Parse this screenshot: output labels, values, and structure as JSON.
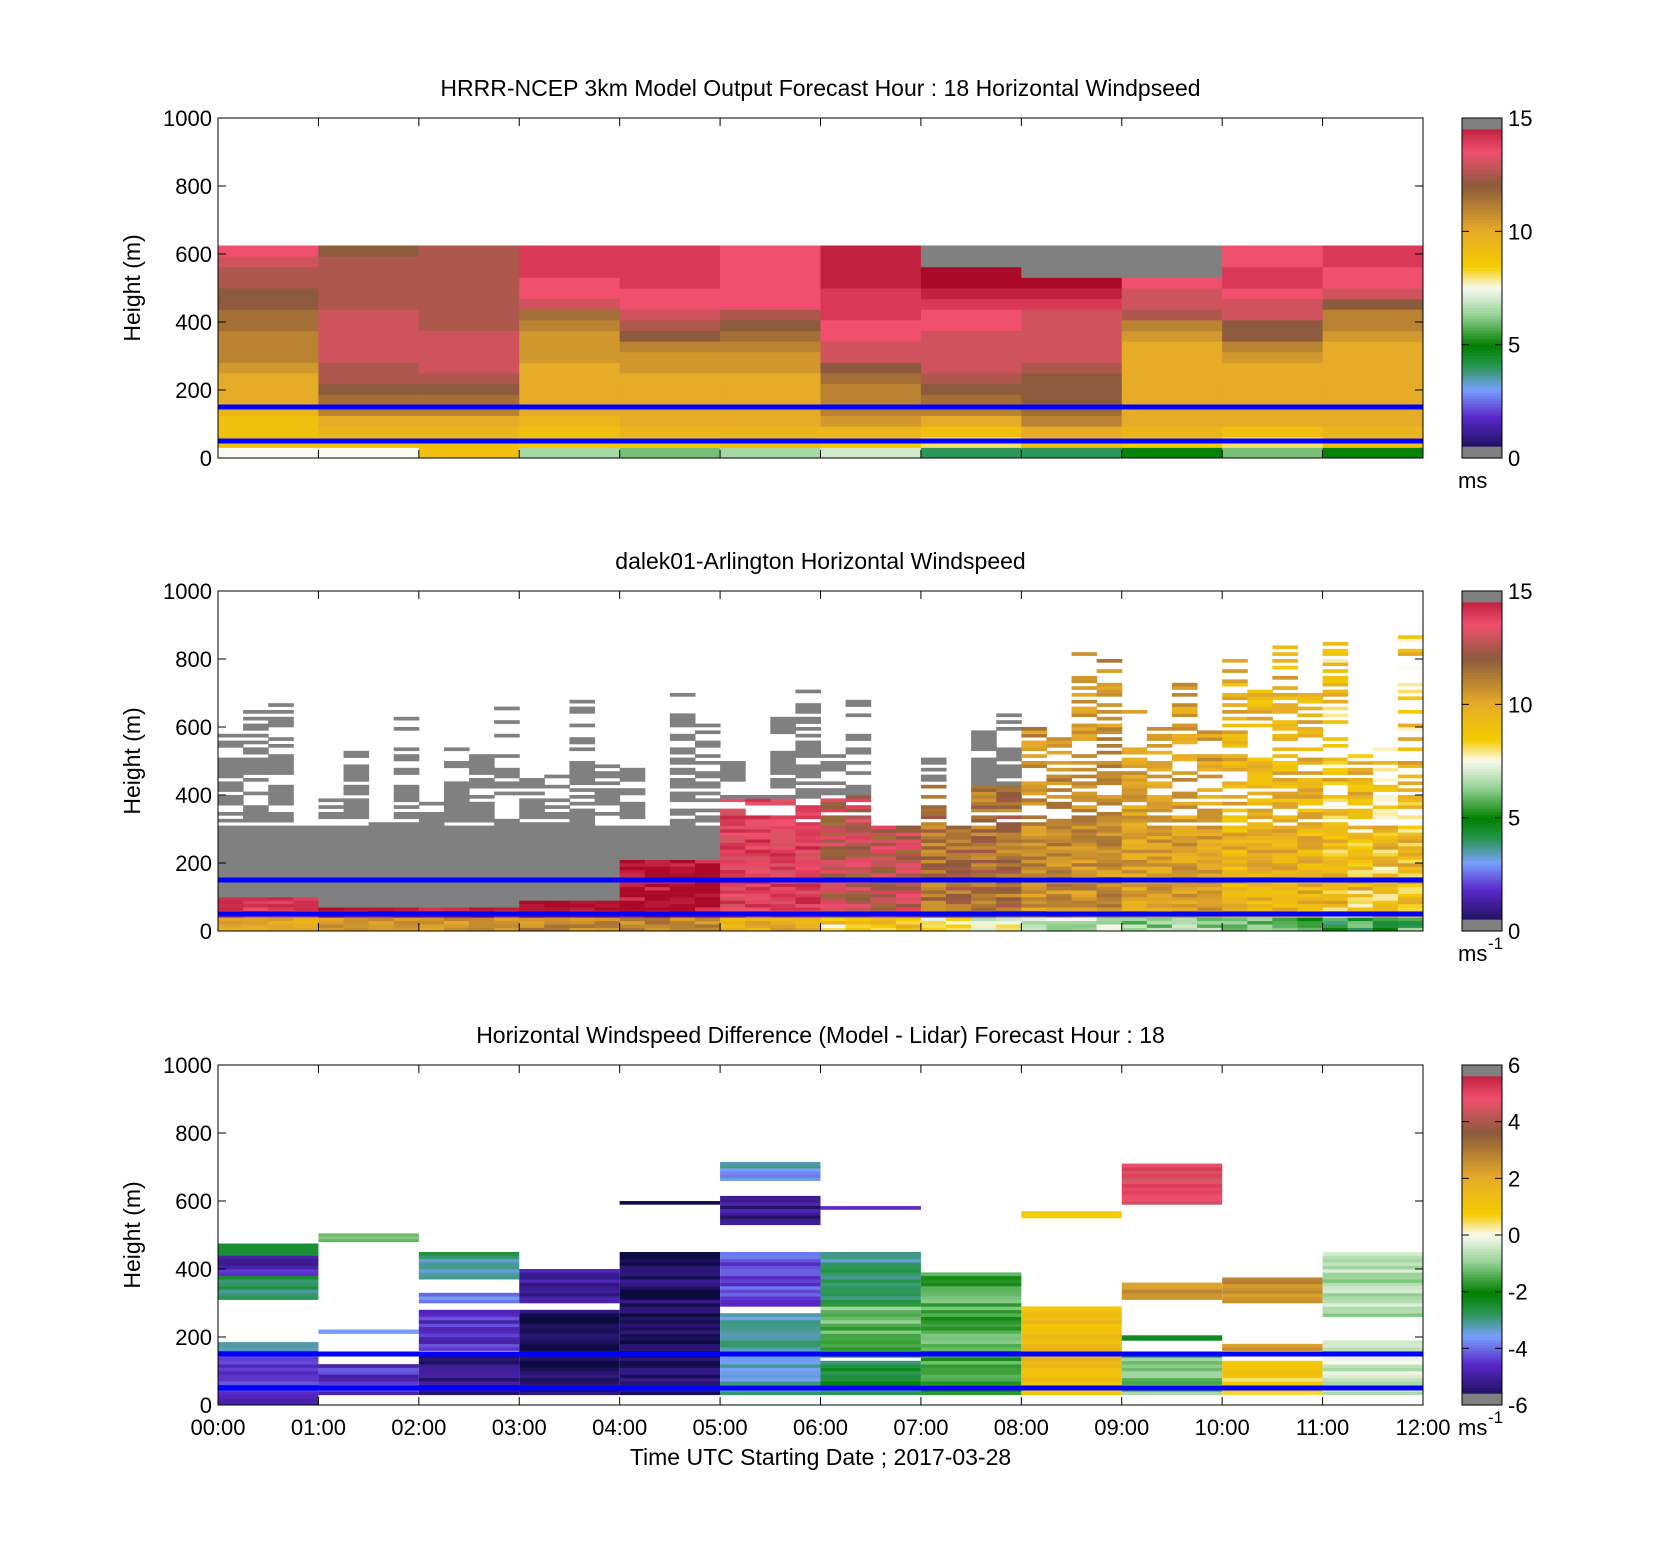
{
  "chart_data": [
    {
      "type": "heatmap",
      "title": "HRRR-NCEP 3km Model Output   Forecast Hour : 18 Horizontal Windpseed",
      "ylabel": "Height (m)",
      "xlabel": "",
      "ylim": [
        0,
        1000
      ],
      "xlim": [
        0,
        12
      ],
      "yticks": [
        "0",
        "200",
        "400",
        "600",
        "800",
        "1000"
      ],
      "xtick_positions": [
        0,
        1,
        2,
        3,
        4,
        5,
        6,
        7,
        8,
        9,
        10,
        11,
        12
      ],
      "horizontal_lines": [
        50,
        150
      ],
      "colorbar": {
        "ticks": [
          "0",
          "5",
          "10",
          "15"
        ],
        "tick_values": [
          0,
          5,
          10,
          15
        ],
        "range": [
          0,
          15
        ],
        "unit": "ms",
        "unit_sup": ""
      },
      "cell_height": 31.25,
      "bottom": 0,
      "grid": [
        [
          7.5,
          9,
          9,
          9,
          9.5,
          10,
          10,
          10,
          10.5,
          11,
          11,
          11,
          11.5,
          11.5,
          12,
          12,
          12.5,
          12.5,
          13,
          13.5
        ],
        [
          7.5,
          9,
          9.5,
          10,
          11,
          11.5,
          12,
          12.5,
          12.5,
          13,
          13,
          13,
          13,
          13,
          12.5,
          12.5,
          12.5,
          12.5,
          12.5,
          12
        ],
        [
          9,
          9,
          9.5,
          10,
          11,
          11.5,
          12,
          12.5,
          13,
          13,
          13,
          13,
          12.5,
          12.5,
          12.5,
          12.5,
          12.5,
          12.5,
          12.5,
          12.5
        ],
        [
          6.5,
          8.5,
          9,
          9.5,
          10,
          10,
          10,
          10,
          10,
          10.5,
          10.5,
          10.5,
          11,
          11.5,
          13,
          13.5,
          13.5,
          14,
          14,
          14
        ],
        [
          6,
          8.5,
          9.5,
          10,
          10,
          10,
          10,
          10,
          10.5,
          10.5,
          11,
          12,
          12.5,
          13,
          13.5,
          13.5,
          14,
          14,
          14,
          14
        ],
        [
          6.5,
          9,
          9.5,
          10,
          10,
          10,
          10,
          10,
          10.5,
          10.5,
          11,
          11.5,
          12,
          12.5,
          13.5,
          13.5,
          13.5,
          13.5,
          13.5,
          13.5
        ],
        [
          7,
          8.5,
          9.5,
          10.5,
          11,
          11,
          11,
          11.5,
          12,
          13,
          13,
          13.5,
          13.5,
          14,
          14,
          14,
          14.5,
          14.5,
          14.5,
          14.5
        ],
        [
          4,
          8,
          9,
          10,
          11,
          11.5,
          12,
          12.5,
          13,
          13,
          13,
          13,
          13.5,
          13.5,
          14,
          14.5,
          15,
          15,
          15.5,
          15.5
        ],
        [
          4,
          9,
          10,
          11,
          11.5,
          12,
          12,
          12,
          12.5,
          13,
          13,
          13,
          13,
          13,
          14,
          14.5,
          15,
          15.5,
          15.5,
          15.5
        ],
        [
          5,
          8.5,
          9.5,
          10,
          10,
          10,
          10,
          10,
          10,
          10,
          10,
          10.5,
          11,
          12.5,
          13,
          13,
          13.5,
          15.5,
          15.5,
          15.5
        ],
        [
          6,
          8,
          9,
          10,
          10,
          10,
          10,
          10,
          10,
          10.5,
          11,
          12,
          12,
          13,
          13,
          13.5,
          14,
          14,
          13.5,
          13.5
        ],
        [
          5,
          9,
          9.5,
          10,
          10,
          10,
          10,
          10,
          10,
          10,
          10,
          10.5,
          11,
          11,
          12,
          13,
          13.5,
          13.5,
          14,
          14
        ]
      ],
      "spot_value_above_14": "gray",
      "gray_cells_note": ""
    },
    {
      "type": "heatmap",
      "title": "dalek01-Arlington  Horizontal Windspeed",
      "ylabel": "Height (m)",
      "xlabel": "",
      "ylim": [
        0,
        1000
      ],
      "xlim": [
        0,
        12
      ],
      "yticks": [
        "0",
        "200",
        "400",
        "600",
        "800",
        "1000"
      ],
      "xtick_positions": [
        0,
        1,
        2,
        3,
        4,
        5,
        6,
        7,
        8,
        9,
        10,
        11,
        12
      ],
      "horizontal_lines": [
        50,
        150
      ],
      "colorbar": {
        "ticks": [
          "0",
          "5",
          "10",
          "15"
        ],
        "tick_values": [
          0,
          5,
          10,
          15
        ],
        "range": [
          0,
          15
        ],
        "unit": "ms",
        "unit_sup": "-1"
      },
      "segments": 4,
      "seed": 7,
      "column_tops": [
        [
          380,
          520,
          460,
          530,
          600,
          520,
          450,
          510,
          560,
          740,
          620,
          600
        ],
        [
          660,
          640,
          560,
          780,
          680,
          640,
          700,
          860,
          880,
          760,
          820,
          980
        ],
        [
          0,
          0,
          0,
          0,
          0,
          0,
          0,
          0,
          0,
          0,
          0,
          0
        ],
        [
          0,
          0,
          0,
          0,
          0,
          0,
          0,
          0,
          0,
          0,
          0,
          0
        ]
      ],
      "column_profile": [
        {
          "low": 13.5,
          "high": 14.5,
          "gray_above": 90
        },
        {
          "low": 14,
          "high": 15,
          "gray_above": 60
        },
        {
          "low": 14,
          "high": 15,
          "gray_above": 60
        },
        {
          "low": 14,
          "high": 15.5,
          "gray_above": 80
        },
        {
          "low": 14,
          "high": 15.5,
          "gray_above": 200
        },
        {
          "low": 13,
          "high": 14.5,
          "gray_above": 380
        },
        {
          "low": 11.5,
          "high": 14,
          "gray_above": 390
        },
        {
          "low": 10.5,
          "high": 12.5,
          "gray_above": 420
        },
        {
          "low": 10,
          "high": 11.5,
          "gray_above": 1000
        },
        {
          "low": 9.5,
          "high": 11,
          "gray_above": 1000
        },
        {
          "low": 8.5,
          "high": 10.5,
          "gray_above": 1000
        },
        {
          "low": 7.5,
          "high": 10.5,
          "gray_above": 1000
        }
      ]
    },
    {
      "type": "heatmap",
      "title": "Horizontal Windspeed Difference (Model - Lidar) Forecast Hour : 18",
      "ylabel": "Height (m)",
      "xlabel": "Time UTC  Starting Date ; 2017-03-28",
      "ylim": [
        0,
        1000
      ],
      "xlim": [
        0,
        12
      ],
      "yticks": [
        "0",
        "200",
        "400",
        "600",
        "800",
        "1000"
      ],
      "xticks": [
        "00:00",
        "01:00",
        "02:00",
        "03:00",
        "04:00",
        "05:00",
        "06:00",
        "07:00",
        "08:00",
        "09:00",
        "10:00",
        "11:00",
        "12:00"
      ],
      "xtick_positions": [
        0,
        1,
        2,
        3,
        4,
        5,
        6,
        7,
        8,
        9,
        10,
        11,
        12
      ],
      "horizontal_lines": [
        50,
        150
      ],
      "colorbar": {
        "ticks": [
          "-6",
          "-4",
          "-2",
          "0",
          "2",
          "4",
          "6"
        ],
        "tick_values": [
          -6,
          -4,
          -2,
          0,
          2,
          4,
          6
        ],
        "range": [
          -6,
          6
        ],
        "unit": "ms",
        "unit_sup": "-1"
      },
      "blocks": [
        {
          "x0": 0,
          "x1": 1,
          "y0": 0,
          "y1": 180,
          "v": -4.6
        },
        {
          "x0": 0,
          "x1": 1,
          "y0": 160,
          "y1": 185,
          "v": -3.1
        },
        {
          "x0": 0,
          "x1": 1,
          "y0": 310,
          "y1": 380,
          "v": -2.7
        },
        {
          "x0": 0,
          "x1": 1,
          "y0": 380,
          "y1": 440,
          "v": -4.8
        },
        {
          "x0": 0,
          "x1": 1,
          "y0": 440,
          "y1": 475,
          "v": -2.6
        },
        {
          "x0": 1,
          "x1": 2,
          "y0": 30,
          "y1": 120,
          "v": -4.6
        },
        {
          "x0": 1,
          "x1": 2,
          "y0": 210,
          "y1": 222,
          "v": -3.2
        },
        {
          "x0": 1,
          "x1": 2,
          "y0": 480,
          "y1": 505,
          "v": -1.2
        },
        {
          "x0": 2,
          "x1": 3,
          "y0": 30,
          "y1": 150,
          "v": -5.3
        },
        {
          "x0": 2,
          "x1": 3,
          "y0": 160,
          "y1": 280,
          "v": -4.6
        },
        {
          "x0": 2,
          "x1": 3,
          "y0": 300,
          "y1": 330,
          "v": -3.8
        },
        {
          "x0": 2,
          "x1": 3,
          "y0": 370,
          "y1": 450,
          "v": -3.0
        },
        {
          "x0": 3,
          "x1": 4,
          "y0": 30,
          "y1": 280,
          "v": -5.7
        },
        {
          "x0": 3,
          "x1": 4,
          "y0": 300,
          "y1": 400,
          "v": -5.0
        },
        {
          "x0": 4,
          "x1": 5,
          "y0": 30,
          "y1": 450,
          "v": -5.6
        },
        {
          "x0": 4,
          "x1": 5,
          "y0": 590,
          "y1": 600,
          "v": -5.8
        },
        {
          "x0": 5,
          "x1": 6,
          "y0": 30,
          "y1": 270,
          "v": -3.3
        },
        {
          "x0": 5,
          "x1": 6,
          "y0": 290,
          "y1": 450,
          "v": -4.3
        },
        {
          "x0": 5,
          "x1": 6,
          "y0": 530,
          "y1": 615,
          "v": -5.2
        },
        {
          "x0": 5,
          "x1": 6,
          "y0": 660,
          "y1": 715,
          "v": -3.5
        },
        {
          "x0": 6,
          "x1": 7,
          "y0": 30,
          "y1": 130,
          "v": -2.6
        },
        {
          "x0": 6,
          "x1": 7,
          "y0": 140,
          "y1": 300,
          "v": -1.3
        },
        {
          "x0": 6,
          "x1": 7,
          "y0": 300,
          "y1": 450,
          "v": -3.1
        },
        {
          "x0": 6,
          "x1": 7,
          "y0": 575,
          "y1": 585,
          "v": -4.5
        },
        {
          "x0": 7,
          "x1": 8,
          "y0": 30,
          "y1": 390,
          "v": -1.5
        },
        {
          "x0": 8,
          "x1": 9,
          "y0": 30,
          "y1": 290,
          "v": 1.3
        },
        {
          "x0": 8,
          "x1": 9,
          "y0": 550,
          "y1": 570,
          "v": 0.8
        },
        {
          "x0": 9,
          "x1": 10,
          "y0": 30,
          "y1": 150,
          "v": -1.2
        },
        {
          "x0": 9,
          "x1": 10,
          "y0": 190,
          "y1": 205,
          "v": -2.6
        },
        {
          "x0": 9,
          "x1": 10,
          "y0": 310,
          "y1": 360,
          "v": 2.6
        },
        {
          "x0": 9,
          "x1": 10,
          "y0": 590,
          "y1": 710,
          "v": 4.8
        },
        {
          "x0": 10,
          "x1": 11,
          "y0": 30,
          "y1": 130,
          "v": 0.8
        },
        {
          "x0": 10,
          "x1": 11,
          "y0": 160,
          "y1": 180,
          "v": 2.4
        },
        {
          "x0": 10,
          "x1": 11,
          "y0": 300,
          "y1": 375,
          "v": 2.5
        },
        {
          "x0": 11,
          "x1": 12,
          "y0": 30,
          "y1": 190,
          "v": -0.4
        },
        {
          "x0": 11,
          "x1": 12,
          "y0": 260,
          "y1": 450,
          "v": -0.7
        }
      ]
    }
  ]
}
